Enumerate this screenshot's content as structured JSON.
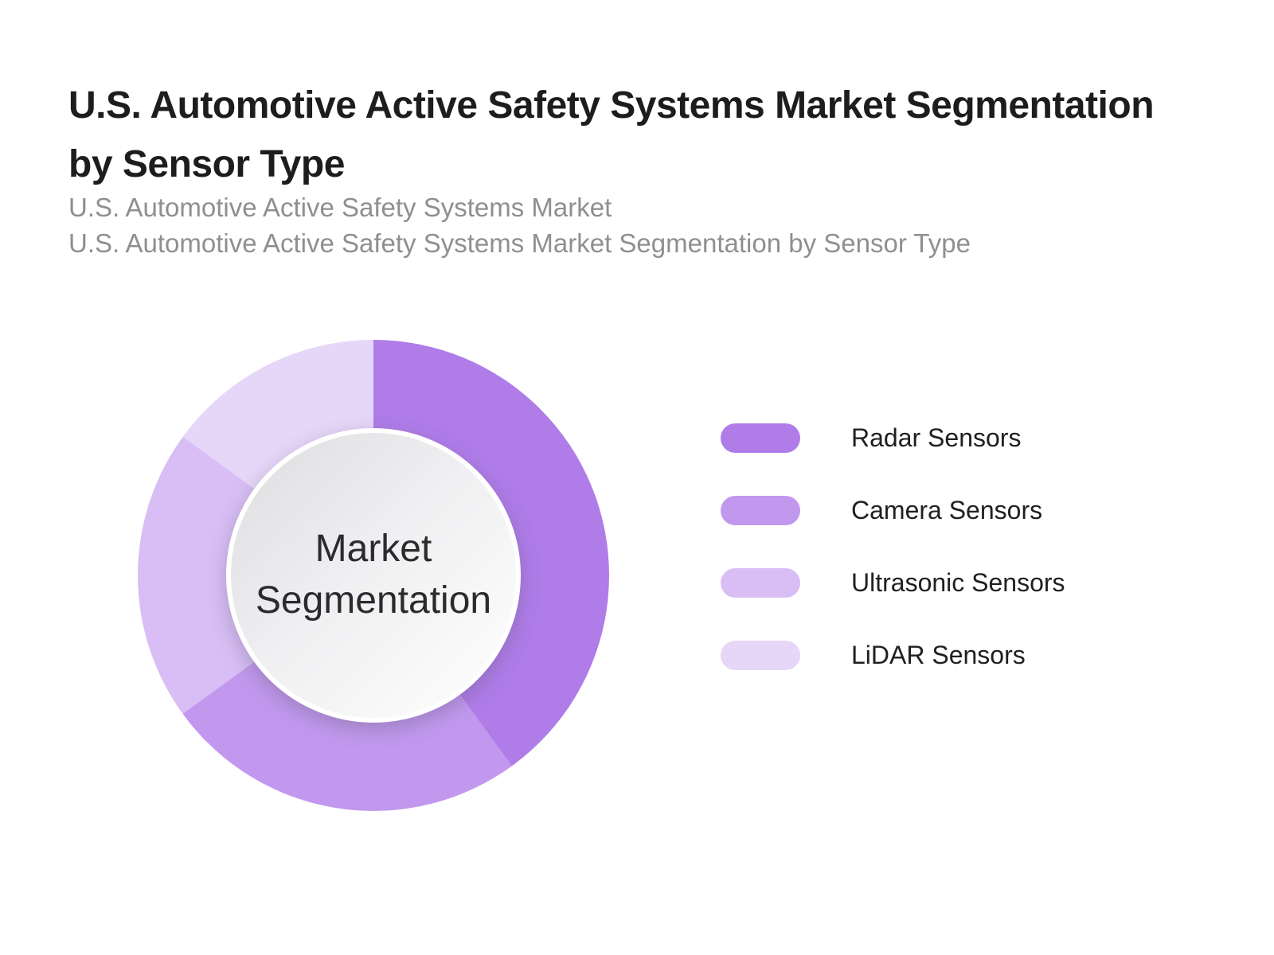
{
  "header": {
    "title_line1": "U.S. Automotive Active Safety Systems Market Segmentation",
    "title_line2": "by Sensor Type",
    "subtitle_line1": "U.S. Automotive Active Safety Systems Market",
    "subtitle_line2": "U.S. Automotive Active Safety Systems Market Segmentation by Sensor Type"
  },
  "donut": {
    "center_label": "Market Segmentation"
  },
  "chart_data": {
    "type": "pie",
    "subtype": "donut",
    "title": "U.S. Automotive Active Safety Systems Market Segmentation by Sensor Type",
    "categories": [
      "Radar Sensors",
      "Camera Sensors",
      "Ultrasonic Sensors",
      "LiDAR Sensors"
    ],
    "values": [
      40,
      25,
      20,
      15
    ],
    "colors": [
      "#af7ce8",
      "#c198ee",
      "#d8bef4",
      "#e6d6f8"
    ],
    "start_angle_deg": 0,
    "direction": "clockwise",
    "center_label": "Market Segmentation",
    "legend_position": "right",
    "data_labels_shown": false
  },
  "legend": {
    "items": [
      {
        "label": "Radar Sensors",
        "color": "#af7ce8"
      },
      {
        "label": "Camera Sensors",
        "color": "#c198ee"
      },
      {
        "label": "Ultrasonic Sensors",
        "color": "#d8bef4"
      },
      {
        "label": "LiDAR Sensors",
        "color": "#e6d6f8"
      }
    ]
  }
}
